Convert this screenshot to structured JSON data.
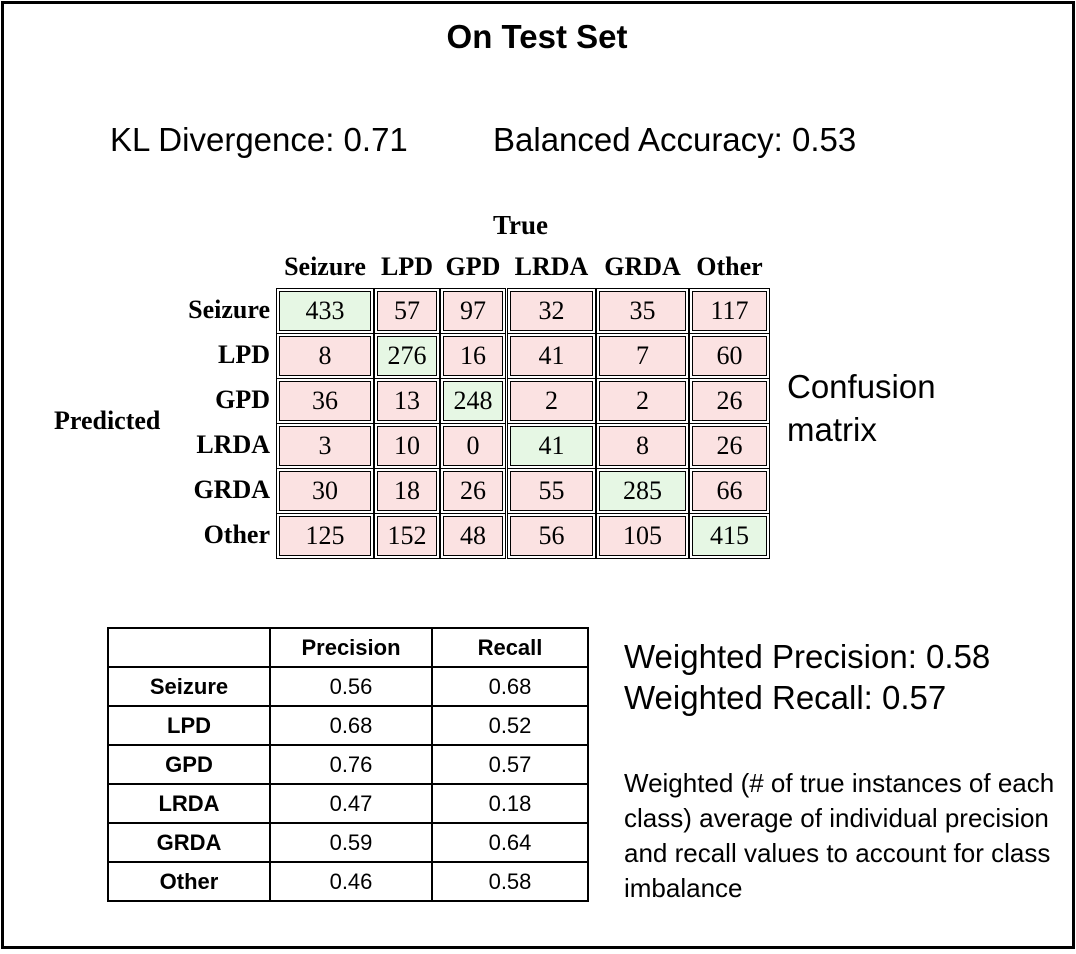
{
  "title": "On Test Set",
  "metrics": {
    "kl": "KL Divergence: 0.71",
    "balanced_accuracy": "Balanced Accuracy: 0.53"
  },
  "confusion_matrix": {
    "true_label": "True",
    "predicted_label": "Predicted",
    "caption_line1": "Confusion",
    "caption_line2": "matrix",
    "classes": [
      "Seizure",
      "LPD",
      "GPD",
      "LRDA",
      "GRDA",
      "Other"
    ],
    "values": [
      [
        433,
        57,
        97,
        32,
        35,
        117
      ],
      [
        8,
        276,
        16,
        41,
        7,
        60
      ],
      [
        36,
        13,
        248,
        2,
        2,
        26
      ],
      [
        3,
        10,
        0,
        41,
        8,
        26
      ],
      [
        30,
        18,
        26,
        55,
        285,
        66
      ],
      [
        125,
        152,
        48,
        56,
        105,
        415
      ]
    ],
    "colors": {
      "diagonal": "#e6f7e4",
      "off_diagonal": "#fbe2e2"
    }
  },
  "precision_recall": {
    "headers": [
      "",
      "Precision",
      "Recall"
    ],
    "rows": [
      {
        "label": "Seizure",
        "precision": "0.56",
        "recall": "0.68"
      },
      {
        "label": "LPD",
        "precision": "0.68",
        "recall": "0.52"
      },
      {
        "label": "GPD",
        "precision": "0.76",
        "recall": "0.57"
      },
      {
        "label": "LRDA",
        "precision": "0.47",
        "recall": "0.18"
      },
      {
        "label": "GRDA",
        "precision": "0.59",
        "recall": "0.64"
      },
      {
        "label": "Other",
        "precision": "0.46",
        "recall": "0.58"
      }
    ]
  },
  "weighted": {
    "precision": "Weighted Precision: 0.58",
    "recall": "Weighted Recall: 0.57",
    "note": "Weighted (# of true instances of each class) average of individual precision and recall values to account for class imbalance"
  }
}
